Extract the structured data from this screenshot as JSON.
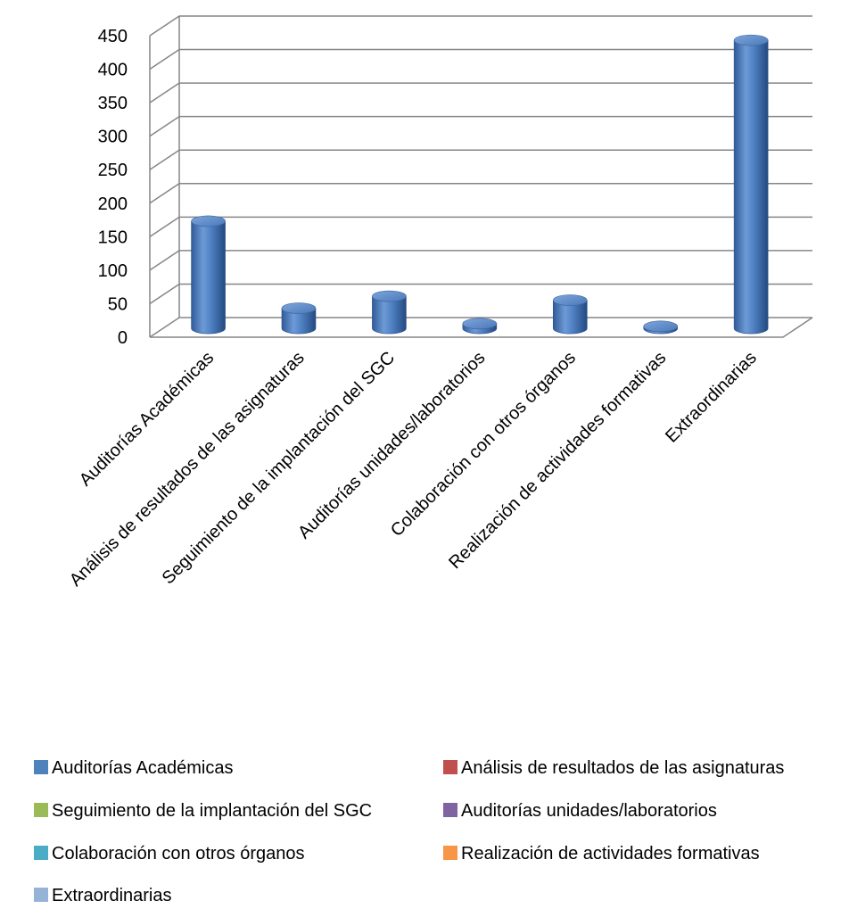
{
  "chart_data": {
    "type": "bar",
    "style": "3d-cylinder",
    "categories": [
      "Auditorías Académicas",
      "Análisis de resultados de las asignaturas",
      "Seguimiento de la implantación del SGC",
      "Auditorías unidades/laboratorios",
      "Colaboración con otros órganos",
      "Realización de actividades formativas",
      "Extraordinarias"
    ],
    "values": [
      160,
      30,
      48,
      7,
      42,
      3,
      430
    ],
    "ylim": [
      0,
      450
    ],
    "yticks": [
      "0",
      "50",
      "100",
      "150",
      "200",
      "250",
      "300",
      "350",
      "400",
      "450"
    ],
    "title": "",
    "xlabel": "",
    "ylabel": "",
    "grid": true,
    "legend_position": "bottom",
    "legend": [
      {
        "label": "Auditorías Académicas",
        "color": "#4f81bd"
      },
      {
        "label": "Análisis de resultados de las asignaturas",
        "color": "#c0504d"
      },
      {
        "label": "Seguimiento de la implantación del SGC",
        "color": "#9bbb59"
      },
      {
        "label": "Auditorías unidades/laboratorios",
        "color": "#8064a2"
      },
      {
        "label": "Colaboración con otros órganos",
        "color": "#4bacc6"
      },
      {
        "label": "Realización de actividades formativas",
        "color": "#f79646"
      },
      {
        "label": "Extraordinarias",
        "color": "#95b3d7"
      }
    ],
    "bar_color": "#4f81bd"
  }
}
